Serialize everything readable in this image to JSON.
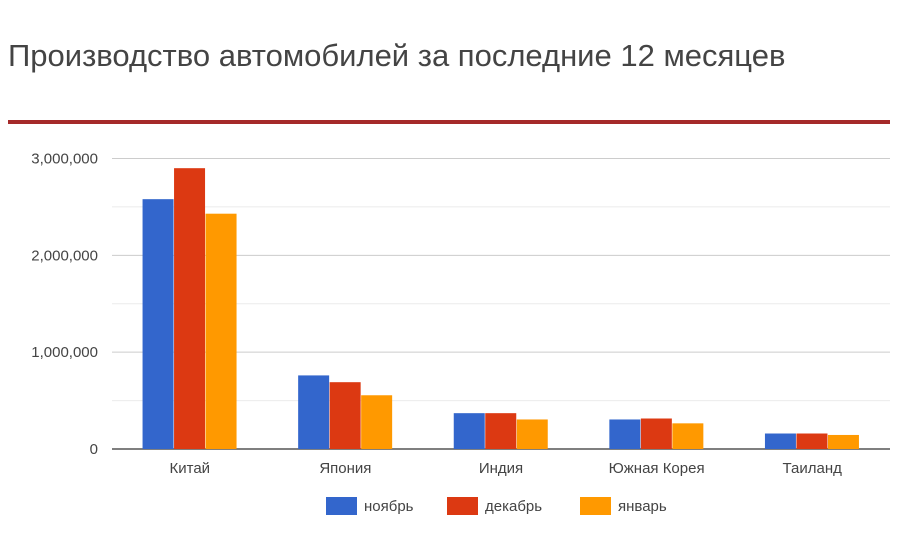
{
  "chart_data": {
    "type": "bar",
    "title": "Производство автомобилей за последние 12 месяцев",
    "xlabel": "",
    "ylabel": "",
    "categories": [
      "Китай",
      "Япония",
      "Индия",
      "Южная Корея",
      "Таиланд"
    ],
    "series": [
      {
        "name": "ноябрь",
        "color": "#3366cc",
        "values": [
          2580000,
          760000,
          370000,
          305000,
          160000
        ]
      },
      {
        "name": "декабрь",
        "color": "#dc3912",
        "values": [
          2900000,
          690000,
          370000,
          315000,
          160000
        ]
      },
      {
        "name": "январь",
        "color": "#ff9900",
        "values": [
          2430000,
          555000,
          305000,
          265000,
          145000
        ]
      }
    ],
    "ylim": [
      0,
      3000000
    ],
    "y_ticks": [
      {
        "value": 0,
        "label": "0"
      },
      {
        "value": 1000000,
        "label": "1,000,000"
      },
      {
        "value": 2000000,
        "label": "2,000,000"
      },
      {
        "value": 3000000,
        "label": "3,000,000"
      }
    ],
    "grid": true,
    "legend_position": "bottom-center",
    "accent_rule_color": "#a52a2a"
  }
}
